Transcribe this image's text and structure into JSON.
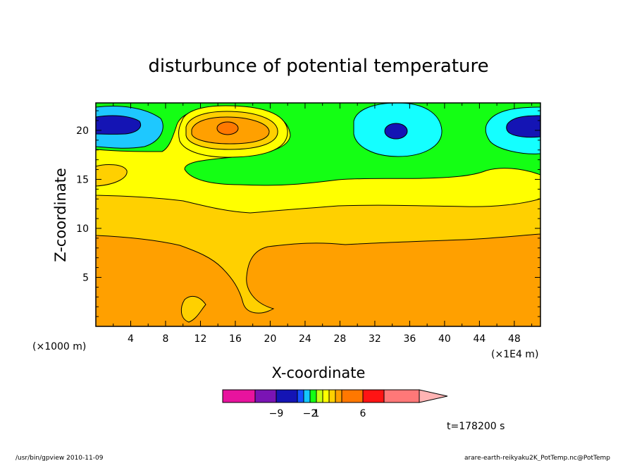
{
  "chart_data": {
    "type": "heatmap",
    "title": "disturbunce of potential temperature",
    "xlabel": "X-coordinate",
    "ylabel": "Z-coordinate",
    "x_scale_note": "(×1E4 m)",
    "y_scale_note": "(×1000 m)",
    "xlim": [
      0,
      51
    ],
    "ylim": [
      0,
      22.8
    ],
    "x_ticks": [
      {
        "value": 4,
        "label": "4"
      },
      {
        "value": 8,
        "label": "8"
      },
      {
        "value": 12,
        "label": "12"
      },
      {
        "value": 16,
        "label": "16"
      },
      {
        "value": 20,
        "label": "20"
      },
      {
        "value": 24,
        "label": "24"
      },
      {
        "value": 28,
        "label": "28"
      },
      {
        "value": 32,
        "label": "32"
      },
      {
        "value": 36,
        "label": "36"
      },
      {
        "value": 40,
        "label": "40"
      },
      {
        "value": 44,
        "label": "44"
      },
      {
        "value": 48,
        "label": "48"
      }
    ],
    "y_ticks": [
      {
        "value": 5,
        "label": "5"
      },
      {
        "value": 10,
        "label": "10"
      },
      {
        "value": 15,
        "label": "15"
      },
      {
        "value": 20,
        "label": "20"
      }
    ],
    "colorbar": {
      "colors": [
        "#e8139e",
        "#7a14b4",
        "#1414b4",
        "#1450ff",
        "#14c8ff",
        "#14ff14",
        "#c8ff14",
        "#ffff00",
        "#ffd000",
        "#ffa000",
        "#ff7800",
        "#ff1414",
        "#ff7878",
        "#ffb4b4"
      ],
      "tick_labels": [
        {
          "after_segment": 1,
          "label": "−9"
        },
        {
          "after_segment": 4,
          "label": "−2"
        },
        {
          "after_segment": 5,
          "label": "1"
        },
        {
          "after_segment": 10,
          "label": "6"
        }
      ]
    },
    "colors": {
      "deep_blue": "#1414b4",
      "cyan": "#14ffff",
      "green": "#14ff14",
      "yellow": "#ffff00",
      "light_orange": "#ffd000",
      "orange": "#ffa000",
      "dark_orange": "#ff7800",
      "light_blue": "#1ec8ff"
    }
  },
  "annotations": {
    "time": "t=178200 s",
    "footer_left": "/usr/bin/gpview  2010-11-09",
    "footer_right": "arare-earth-reikyaku2K_PotTemp.nc@PotTemp"
  }
}
